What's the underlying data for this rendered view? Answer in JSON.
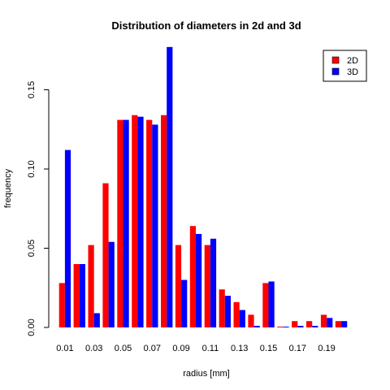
{
  "chart_data": {
    "type": "bar",
    "title": "Distribution of diameters in 2d and 3d",
    "xlabel": "radius [mm]",
    "ylabel": "frequency",
    "ylim": [
      0,
      0.18
    ],
    "yticks": [
      "0.00",
      "0.05",
      "0.10",
      "0.15"
    ],
    "categories": [
      "0.01",
      "0.02",
      "0.03",
      "0.04",
      "0.05",
      "0.06",
      "0.07",
      "0.08",
      "0.09",
      "0.10",
      "0.11",
      "0.12",
      "0.13",
      "0.14",
      "0.15",
      "0.16",
      "0.17",
      "0.18",
      "0.19",
      "0.20"
    ],
    "xtick_labels": [
      "0.01",
      "0.03",
      "0.05",
      "0.07",
      "0.09",
      "0.11",
      "0.13",
      "0.15",
      "0.17",
      "0.19"
    ],
    "series": [
      {
        "name": "2D",
        "color": "#ff0000",
        "values": [
          0.028,
          0.04,
          0.052,
          0.091,
          0.131,
          0.134,
          0.131,
          0.134,
          0.052,
          0.064,
          0.052,
          0.024,
          0.016,
          0.008,
          0.028,
          0.0005,
          0.004,
          0.004,
          0.008,
          0.004
        ]
      },
      {
        "name": "3D",
        "color": "#0000ff",
        "values": [
          0.112,
          0.04,
          0.009,
          0.054,
          0.131,
          0.133,
          0.128,
          0.177,
          0.03,
          0.059,
          0.056,
          0.02,
          0.011,
          0.001,
          0.029,
          0.0005,
          0.001,
          0.001,
          0.006,
          0.004
        ]
      }
    ],
    "legend": "top-right",
    "grid": false
  }
}
